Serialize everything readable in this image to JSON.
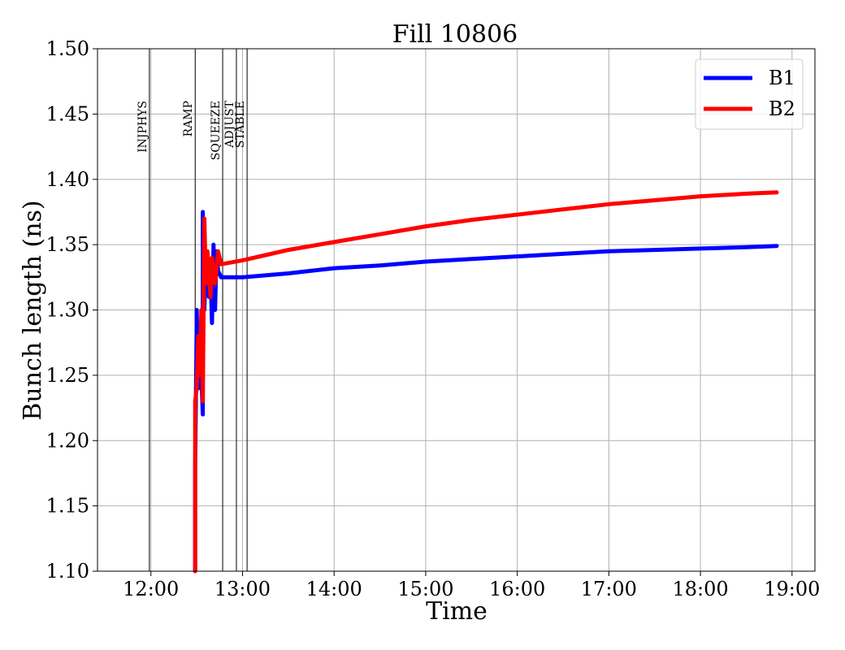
{
  "chart_data": {
    "type": "line",
    "title": "Fill 10806",
    "xlabel": "Time",
    "ylabel": "Bunch length (ns)",
    "xlim": [
      "11:25",
      "19:15"
    ],
    "ylim": [
      1.1,
      1.5
    ],
    "x_ticks": [
      "12:00",
      "13:00",
      "14:00",
      "15:00",
      "16:00",
      "17:00",
      "18:00",
      "19:00"
    ],
    "y_ticks": [
      "1.10",
      "1.15",
      "1.20",
      "1.25",
      "1.30",
      "1.35",
      "1.40",
      "1.45",
      "1.50"
    ],
    "grid": true,
    "legend_position": "top-right",
    "phases": [
      {
        "label": "INJPHYS",
        "time": "11:59"
      },
      {
        "label": "RAMP",
        "time": "12:29"
      },
      {
        "label": "SQUEEZE",
        "time": "12:47"
      },
      {
        "label": "ADJUST",
        "time": "12:56"
      },
      {
        "label": "STABLE",
        "time": "13:03"
      }
    ],
    "series": [
      {
        "name": "B1",
        "color": "#0000ff",
        "points": [
          [
            "12:29",
            1.1
          ],
          [
            "12:29",
            1.18
          ],
          [
            "12:30",
            1.29
          ],
          [
            "12:30",
            1.3
          ],
          [
            "12:31",
            1.24
          ],
          [
            "12:32",
            1.27
          ],
          [
            "12:33",
            1.25
          ],
          [
            "12:34",
            1.22
          ],
          [
            "12:34",
            1.375
          ],
          [
            "12:35",
            1.3
          ],
          [
            "12:36",
            1.34
          ],
          [
            "12:37",
            1.33
          ],
          [
            "12:38",
            1.31
          ],
          [
            "12:39",
            1.33
          ],
          [
            "12:40",
            1.29
          ],
          [
            "12:41",
            1.35
          ],
          [
            "12:42",
            1.3
          ],
          [
            "12:43",
            1.345
          ],
          [
            "12:44",
            1.33
          ],
          [
            "12:46",
            1.325
          ],
          [
            "13:00",
            1.325
          ],
          [
            "13:30",
            1.328
          ],
          [
            "14:00",
            1.332
          ],
          [
            "14:30",
            1.334
          ],
          [
            "15:00",
            1.337
          ],
          [
            "15:30",
            1.339
          ],
          [
            "16:00",
            1.341
          ],
          [
            "16:30",
            1.343
          ],
          [
            "17:00",
            1.345
          ],
          [
            "17:30",
            1.346
          ],
          [
            "18:00",
            1.347
          ],
          [
            "18:30",
            1.348
          ],
          [
            "18:50",
            1.349
          ]
        ]
      },
      {
        "name": "B2",
        "color": "#ff0000",
        "points": [
          [
            "12:29",
            1.1
          ],
          [
            "12:29",
            1.23
          ],
          [
            "12:30",
            1.24
          ],
          [
            "12:31",
            1.28
          ],
          [
            "12:32",
            1.25
          ],
          [
            "12:33",
            1.3
          ],
          [
            "12:34",
            1.23
          ],
          [
            "12:35",
            1.37
          ],
          [
            "12:36",
            1.32
          ],
          [
            "12:37",
            1.345
          ],
          [
            "12:38",
            1.33
          ],
          [
            "12:39",
            1.31
          ],
          [
            "12:40",
            1.34
          ],
          [
            "12:42",
            1.32
          ],
          [
            "12:44",
            1.345
          ],
          [
            "12:46",
            1.335
          ],
          [
            "13:00",
            1.338
          ],
          [
            "13:15",
            1.342
          ],
          [
            "13:30",
            1.346
          ],
          [
            "14:00",
            1.352
          ],
          [
            "14:30",
            1.358
          ],
          [
            "15:00",
            1.364
          ],
          [
            "15:30",
            1.369
          ],
          [
            "16:00",
            1.373
          ],
          [
            "16:30",
            1.377
          ],
          [
            "17:00",
            1.381
          ],
          [
            "17:30",
            1.384
          ],
          [
            "18:00",
            1.387
          ],
          [
            "18:30",
            1.389
          ],
          [
            "18:50",
            1.39
          ]
        ]
      }
    ]
  }
}
